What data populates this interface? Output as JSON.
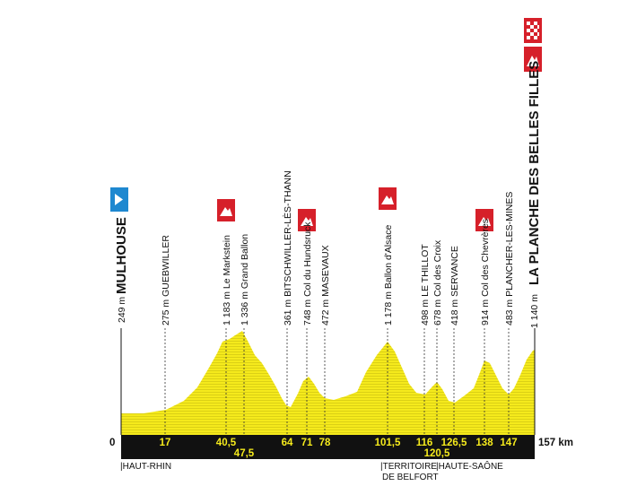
{
  "header_fragment": "",
  "start": {
    "label": "MULHOUSE",
    "alt": "249 m",
    "km": "0"
  },
  "finish": {
    "label": "LA PLANCHE DES BELLES FILLES",
    "alt": "1 140 m",
    "km": "157 km"
  },
  "waypoints": [
    {
      "text": "275 m GUEBWILLER",
      "km": "17"
    },
    {
      "text": "1 183 m Le Markstein",
      "km": "40,5"
    },
    {
      "text": "1 336 m Grand Ballon",
      "km": "47,5"
    },
    {
      "text": "361 m BITSCHWILLER-LÈS-THANN",
      "km": "64"
    },
    {
      "text": "748 m Col du Hundsruck",
      "km": "71"
    },
    {
      "text": "472 m MASEVAUX",
      "km": "78"
    },
    {
      "text": "1 178 m Ballon d'Alsace",
      "km": "101,5"
    },
    {
      "text": "498 m LE THILLOT",
      "km": "116"
    },
    {
      "text": "678 m Col des Croix",
      "km": "120,5"
    },
    {
      "text": "418 m SERVANCE",
      "km": "126,5"
    },
    {
      "text": "914 m Col des Chevrères",
      "km": "138"
    },
    {
      "text": "483 m PLANCHER-LES-MINES",
      "km": "147"
    }
  ],
  "regions": {
    "haut_rhin": "|HAUT-RHIN",
    "belfort_1": "|TERRITOIRE",
    "belfort_2": "DE BELFORT",
    "haute_saone": "|HAUTE-SAÔNE"
  },
  "colors": {
    "profile_fill": "#f5ea1c",
    "band": "#111111",
    "climb_marker": "#d6202a",
    "start_marker": "#1e88d0"
  },
  "icons": [
    "start-flag-icon",
    "climb-icon",
    "finish-climb-icon",
    "checkered-finish-icon"
  ]
}
